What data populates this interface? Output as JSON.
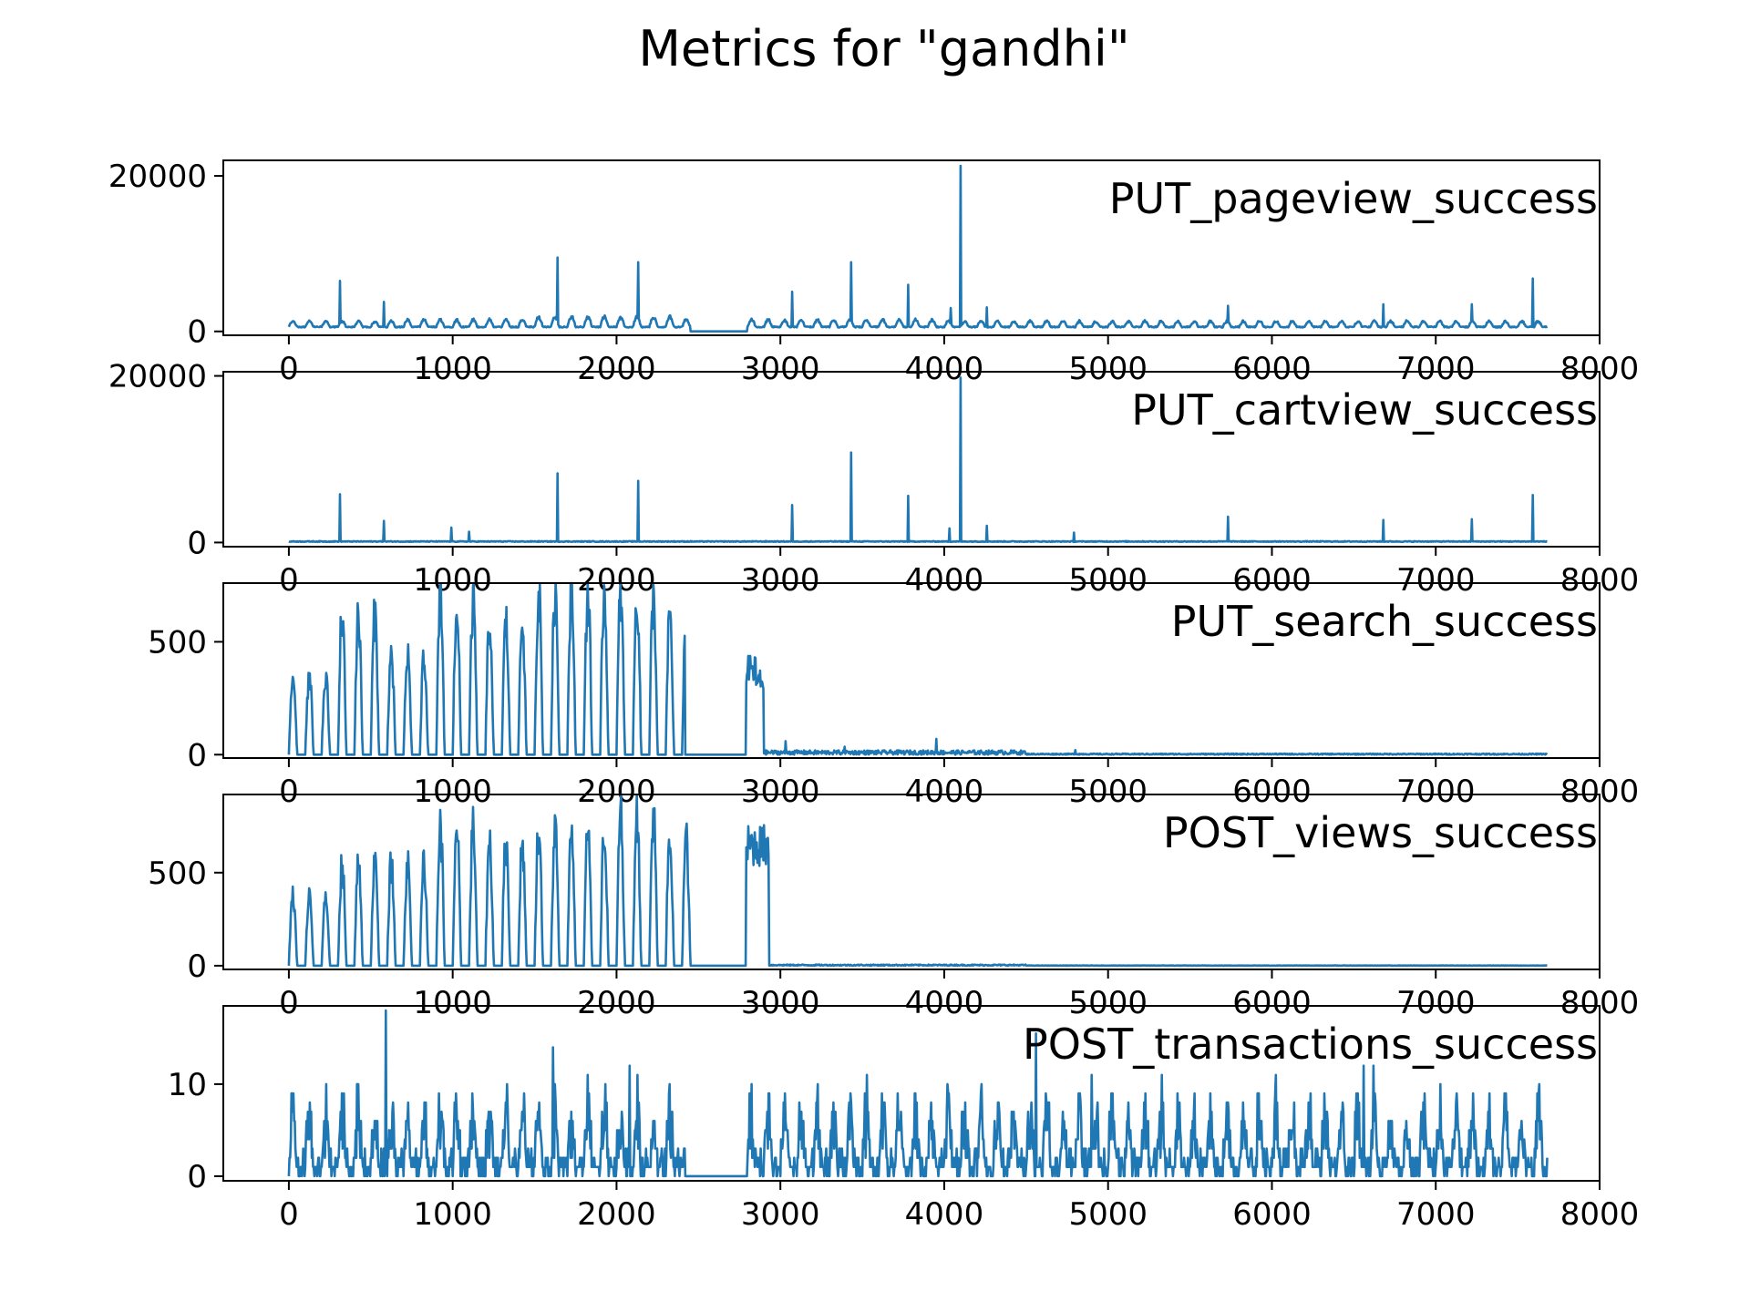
{
  "title": "Metrics for \"gandhi\"",
  "line_color": "#1f77b4",
  "chart_data": [
    {
      "type": "line",
      "title": "PUT_pageview_success",
      "xlim": [
        -400,
        8000
      ],
      "ylim": [
        -500,
        22000
      ],
      "x_ticks": [
        0,
        1000,
        2000,
        3000,
        4000,
        5000,
        6000,
        7000,
        8000
      ],
      "x_tick_labels": [
        "0",
        "1000",
        "2000",
        "3000",
        "4000",
        "5000",
        "6000",
        "7000",
        "8000"
      ],
      "y_ticks": [
        0,
        20000
      ],
      "y_tick_labels": [
        "0",
        "20000"
      ],
      "series": [
        {
          "pattern": "periodic",
          "period": 100,
          "base": 500,
          "amplitude": 1300,
          "amp_per_segment": [
            [
              0,
              1300
            ],
            [
              700,
              1500
            ],
            [
              1500,
              1900
            ],
            [
              2400,
              1500
            ],
            [
              4000,
              1300
            ]
          ],
          "gaps": [
            [
              2450,
              2800
            ]
          ],
          "end": 7680,
          "spikes": [
            [
              310,
              6500
            ],
            [
              580,
              3800
            ],
            [
              1640,
              9500
            ],
            [
              2130,
              8900
            ],
            [
              3070,
              5100
            ],
            [
              3430,
              8900
            ],
            [
              3780,
              6000
            ],
            [
              4040,
              3000
            ],
            [
              4100,
              21300
            ],
            [
              4260,
              3100
            ],
            [
              5730,
              3300
            ],
            [
              6680,
              3500
            ],
            [
              7220,
              3500
            ],
            [
              7590,
              6800
            ]
          ]
        }
      ]
    },
    {
      "type": "line",
      "title": "PUT_cartview_success",
      "xlim": [
        -400,
        8000
      ],
      "ylim": [
        -500,
        20500
      ],
      "x_ticks": [
        0,
        1000,
        2000,
        3000,
        4000,
        5000,
        6000,
        7000,
        8000
      ],
      "x_tick_labels": [
        "0",
        "1000",
        "2000",
        "3000",
        "4000",
        "5000",
        "6000",
        "7000",
        "8000"
      ],
      "y_ticks": [
        0,
        20000
      ],
      "y_tick_labels": [
        "0",
        "20000"
      ],
      "series": [
        {
          "pattern": "flat",
          "base": 120,
          "end": 7680,
          "spikes": [
            [
              310,
              5800
            ],
            [
              580,
              2600
            ],
            [
              990,
              1800
            ],
            [
              1100,
              1300
            ],
            [
              1640,
              8300
            ],
            [
              2130,
              7400
            ],
            [
              3070,
              4500
            ],
            [
              3430,
              10800
            ],
            [
              3780,
              5600
            ],
            [
              4030,
              1700
            ],
            [
              4100,
              19800
            ],
            [
              4260,
              2000
            ],
            [
              4790,
              1200
            ],
            [
              5730,
              3100
            ],
            [
              6680,
              2700
            ],
            [
              7220,
              2800
            ],
            [
              7590,
              5700
            ]
          ]
        }
      ]
    },
    {
      "type": "line",
      "title": "PUT_search_success",
      "xlim": [
        -400,
        8000
      ],
      "ylim": [
        -15,
        760
      ],
      "x_ticks": [
        0,
        1000,
        2000,
        3000,
        4000,
        5000,
        6000,
        7000,
        8000
      ],
      "x_tick_labels": [
        "0",
        "1000",
        "2000",
        "3000",
        "4000",
        "5000",
        "6000",
        "7000",
        "8000"
      ],
      "y_ticks": [
        0,
        500
      ],
      "y_tick_labels": [
        "0",
        "500"
      ],
      "series": [
        {
          "pattern": "periodic",
          "period": 100,
          "base": 0,
          "amplitude": 650,
          "amp_per_segment": [
            [
              0,
              350
            ],
            [
              300,
              630
            ],
            [
              600,
              450
            ],
            [
              900,
              680
            ],
            [
              1200,
              600
            ],
            [
              1500,
              740
            ],
            [
              2000,
              720
            ],
            [
              2300,
              640
            ]
          ],
          "gaps": [
            [
              2420,
              2790
            ]
          ],
          "burst": [
            [
              2790,
              2850,
              440
            ],
            [
              2850,
              2900,
              380
            ]
          ],
          "tail_start": 2900,
          "tail_level": 12,
          "end": 7680,
          "spikes": [
            [
              3030,
              60
            ],
            [
              3390,
              35
            ],
            [
              3950,
              70
            ],
            [
              4800,
              20
            ]
          ]
        }
      ]
    },
    {
      "type": "line",
      "title": "POST_views_success",
      "xlim": [
        -400,
        8000
      ],
      "ylim": [
        -20,
        920
      ],
      "x_ticks": [
        0,
        1000,
        2000,
        3000,
        4000,
        5000,
        6000,
        7000,
        8000
      ],
      "x_tick_labels": [
        "0",
        "1000",
        "2000",
        "3000",
        "4000",
        "5000",
        "6000",
        "7000",
        "8000"
      ],
      "y_ticks": [
        0,
        500
      ],
      "y_tick_labels": [
        "0",
        "500"
      ],
      "series": [
        {
          "pattern": "periodic",
          "period": 100,
          "base": 0,
          "amplitude": 600,
          "amp_per_segment": [
            [
              0,
              380
            ],
            [
              300,
              560
            ],
            [
              900,
              760
            ],
            [
              1200,
              680
            ],
            [
              1500,
              750
            ],
            [
              2000,
              820
            ],
            [
              2300,
              700
            ]
          ],
          "gaps": [
            [
              2450,
              2790
            ]
          ],
          "burst": [
            [
              2790,
              2930,
              760
            ]
          ],
          "tail_start": 2930,
          "tail_level": 4,
          "end": 7680,
          "spikes": []
        }
      ]
    },
    {
      "type": "line",
      "title": "POST_transactions_success",
      "xlim": [
        -400,
        8000
      ],
      "ylim": [
        -0.5,
        18.5
      ],
      "x_ticks": [
        0,
        1000,
        2000,
        3000,
        4000,
        5000,
        6000,
        7000,
        8000
      ],
      "x_tick_labels": [
        "0",
        "1000",
        "2000",
        "3000",
        "4000",
        "5000",
        "6000",
        "7000",
        "8000"
      ],
      "y_ticks": [
        0,
        10
      ],
      "y_tick_labels": [
        "0",
        "10"
      ],
      "series": [
        {
          "pattern": "noisy",
          "period": 100,
          "base": 0,
          "amplitude": 7,
          "gaps": [
            [
              2420,
              2800
            ]
          ],
          "end": 7680,
          "spikes": [
            [
              590,
              18
            ],
            [
              1610,
              14
            ],
            [
              2080,
              12
            ],
            [
              4560,
              15.5
            ],
            [
              4900,
              11
            ],
            [
              6560,
              12
            ],
            [
              6620,
              12
            ],
            [
              7620,
              9
            ]
          ]
        }
      ]
    }
  ]
}
